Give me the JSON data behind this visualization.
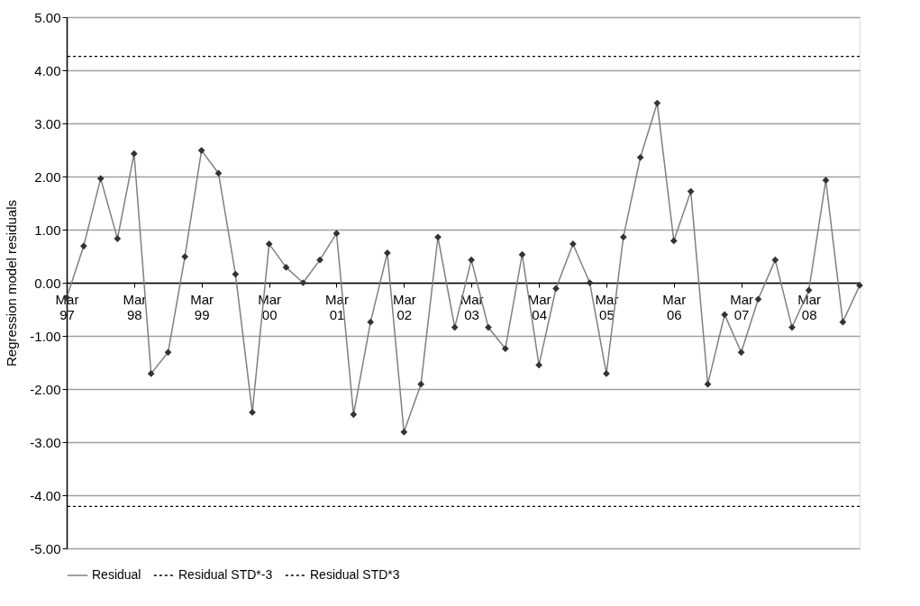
{
  "chart_data": {
    "type": "line",
    "ylabel": "Regression model residuals",
    "x": [
      "1997-03",
      "1997-06",
      "1997-09",
      "1997-12",
      "1998-03",
      "1998-06",
      "1998-09",
      "1998-12",
      "1999-03",
      "1999-06",
      "1999-09",
      "1999-12",
      "2000-03",
      "2000-06",
      "2000-09",
      "2000-12",
      "2001-03",
      "2001-06",
      "2001-09",
      "2001-12",
      "2002-03",
      "2002-06",
      "2002-09",
      "2002-12",
      "2003-03",
      "2003-06",
      "2003-09",
      "2003-12",
      "2004-03",
      "2004-06",
      "2004-09",
      "2004-12",
      "2005-03",
      "2005-06",
      "2005-09",
      "2005-12",
      "2006-03",
      "2006-06",
      "2006-09",
      "2006-12",
      "2007-03",
      "2007-06",
      "2007-09",
      "2007-12",
      "2008-03",
      "2008-06",
      "2008-09",
      "2008-12"
    ],
    "series": [
      {
        "name": "Residual",
        "color": "#808080",
        "values": [
          -0.28,
          0.69,
          1.96,
          0.83,
          2.43,
          -1.71,
          -1.31,
          0.49,
          2.49,
          2.06,
          0.16,
          -2.44,
          0.73,
          0.29,
          0.0,
          0.43,
          0.93,
          -2.48,
          -0.74,
          0.56,
          -2.81,
          -1.91,
          0.86,
          -0.84,
          0.43,
          -0.84,
          -1.24,
          0.53,
          -1.55,
          -0.11,
          0.73,
          0.0,
          -1.71,
          0.86,
          2.36,
          3.38,
          0.79,
          1.72,
          -1.91,
          -0.6,
          -1.31,
          -0.31,
          0.43,
          -0.84,
          -0.14,
          1.93,
          -0.74,
          -0.05
        ]
      }
    ],
    "marker": "diamond",
    "ref_lines": [
      {
        "axis": "y",
        "value": -4.21,
        "label": "Residual STD*-3",
        "color": "#000000",
        "line_style": "dotted"
      },
      {
        "axis": "y",
        "value": 4.26,
        "label": "Residual STD*3",
        "color": "#000000",
        "line_style": "dotted"
      }
    ],
    "xlim": [
      "1997-03",
      "2008-12"
    ],
    "xticks": [
      {
        "value": "1997-03",
        "label": "Mar 97"
      },
      {
        "value": "1998-03",
        "label": "Mar 98"
      },
      {
        "value": "1999-03",
        "label": "Mar 99"
      },
      {
        "value": "2000-03",
        "label": "Mar 00"
      },
      {
        "value": "2001-03",
        "label": "Mar 01"
      },
      {
        "value": "2002-03",
        "label": "Mar 02"
      },
      {
        "value": "2003-03",
        "label": "Mar 03"
      },
      {
        "value": "2004-03",
        "label": "Mar 04"
      },
      {
        "value": "2005-03",
        "label": "Mar 05"
      },
      {
        "value": "2006-03",
        "label": "Mar 06"
      },
      {
        "value": "2007-03",
        "label": "Mar 07"
      },
      {
        "value": "2008-03",
        "label": "Mar 08"
      }
    ],
    "ylim": [
      -5,
      5
    ],
    "yticks": [
      {
        "value": -5,
        "label": "-5.00"
      },
      {
        "value": -4,
        "label": "-4.00"
      },
      {
        "value": -3,
        "label": "-3.00"
      },
      {
        "value": -2,
        "label": "-2.00"
      },
      {
        "value": -1,
        "label": "-1.00"
      },
      {
        "value": 0,
        "label": "0.00"
      },
      {
        "value": 1,
        "label": "1.00"
      },
      {
        "value": 2,
        "label": "2.00"
      },
      {
        "value": 3,
        "label": "3.00"
      },
      {
        "value": 4,
        "label": "4.00"
      },
      {
        "value": 5,
        "label": "5.00"
      }
    ],
    "grid": "y",
    "legend": "bottom",
    "line_style": "solid"
  }
}
